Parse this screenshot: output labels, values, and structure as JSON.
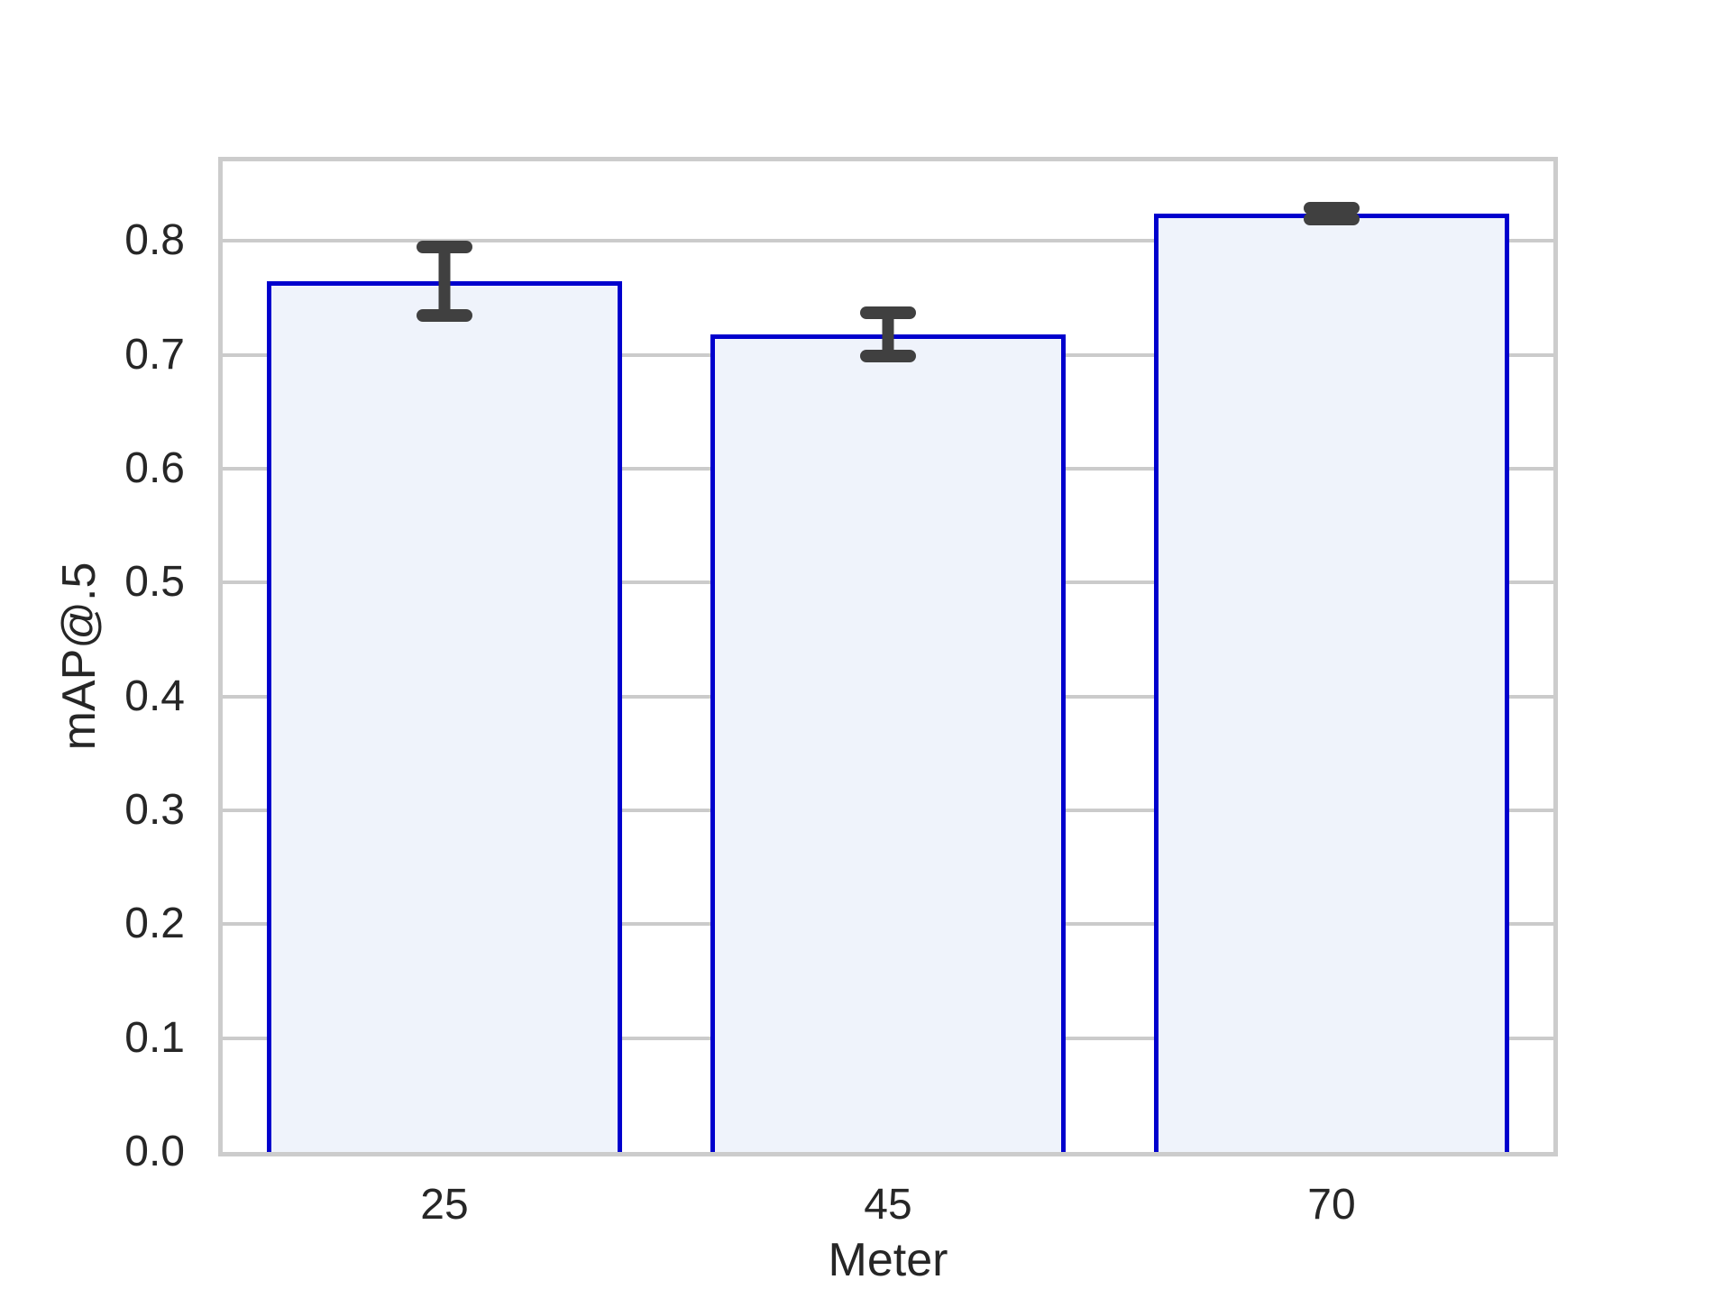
{
  "chart_data": {
    "type": "bar",
    "categories": [
      "25",
      "45",
      "70"
    ],
    "values": [
      0.765,
      0.718,
      0.824
    ],
    "errors": [
      0.03,
      0.019,
      0.005
    ],
    "title": "",
    "xlabel": "Meter",
    "ylabel": "mAP@.5",
    "ylim": [
      0,
      0.87
    ],
    "yticks": [
      0.0,
      0.1,
      0.2,
      0.3,
      0.4,
      0.5,
      0.6,
      0.7,
      0.8
    ],
    "grid": true,
    "legend": "none",
    "bar_fill": "#eff3fb",
    "bar_edge": "#0000cd",
    "error_color": "#404040",
    "grid_color": "#cbcbcb",
    "spine_color": "#cccccc",
    "text_color": "#262626",
    "background": "#ffffff"
  }
}
